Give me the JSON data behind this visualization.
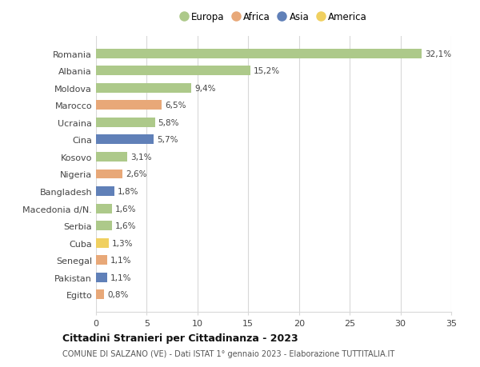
{
  "countries": [
    "Romania",
    "Albania",
    "Moldova",
    "Marocco",
    "Ucraina",
    "Cina",
    "Kosovo",
    "Nigeria",
    "Bangladesh",
    "Macedonia d/N.",
    "Serbia",
    "Cuba",
    "Senegal",
    "Pakistan",
    "Egitto"
  ],
  "values": [
    32.1,
    15.2,
    9.4,
    6.5,
    5.8,
    5.7,
    3.1,
    2.6,
    1.8,
    1.6,
    1.6,
    1.3,
    1.1,
    1.1,
    0.8
  ],
  "labels": [
    "32,1%",
    "15,2%",
    "9,4%",
    "6,5%",
    "5,8%",
    "5,7%",
    "3,1%",
    "2,6%",
    "1,8%",
    "1,6%",
    "1,6%",
    "1,3%",
    "1,1%",
    "1,1%",
    "0,8%"
  ],
  "continents": [
    "Europa",
    "Europa",
    "Europa",
    "Africa",
    "Europa",
    "Asia",
    "Europa",
    "Africa",
    "Asia",
    "Europa",
    "Europa",
    "America",
    "Africa",
    "Asia",
    "Africa"
  ],
  "continent_colors": {
    "Europa": "#adc98a",
    "Africa": "#e8a878",
    "Asia": "#6080b8",
    "America": "#f0d060"
  },
  "legend_order": [
    "Europa",
    "Africa",
    "Asia",
    "America"
  ],
  "title": "Cittadini Stranieri per Cittadinanza - 2023",
  "subtitle": "COMUNE DI SALZANO (VE) - Dati ISTAT 1° gennaio 2023 - Elaborazione TUTTITALIA.IT",
  "xlim": [
    0,
    35
  ],
  "xticks": [
    0,
    5,
    10,
    15,
    20,
    25,
    30,
    35
  ],
  "background_color": "#ffffff",
  "grid_color": "#d8d8d8",
  "bar_height": 0.55
}
